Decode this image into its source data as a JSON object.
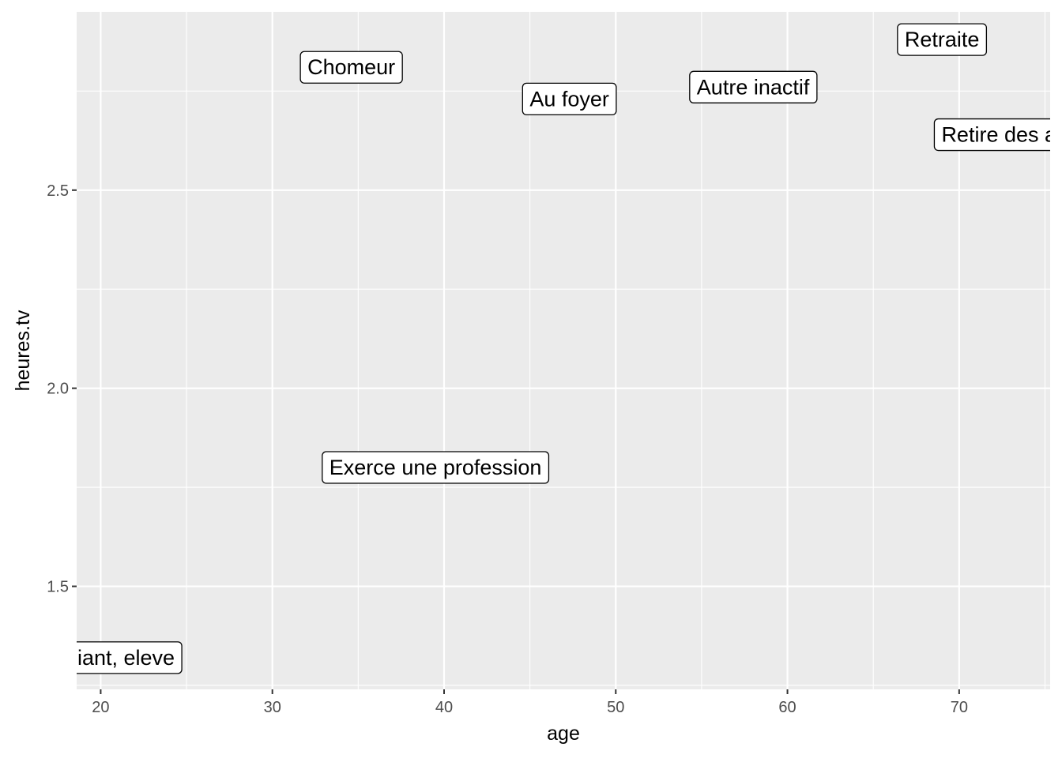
{
  "chart_data": {
    "type": "scatter",
    "geom": "label",
    "xlabel": "age",
    "ylabel": "heures.tv",
    "xlim": [
      18.6,
      75.3
    ],
    "ylim": [
      1.24,
      2.95
    ],
    "x_ticks": [
      20,
      30,
      40,
      50,
      60,
      70
    ],
    "x_tick_labels": [
      "20",
      "30",
      "40",
      "50",
      "60",
      "70"
    ],
    "y_ticks": [
      1.5,
      2.0,
      2.5
    ],
    "y_tick_labels": [
      "1.5",
      "2.0",
      "2.5"
    ],
    "points": [
      {
        "label": "Etudiant, eleve",
        "x": 20.2,
        "y": 1.32
      },
      {
        "label": "Chomeur",
        "x": 34.6,
        "y": 2.81
      },
      {
        "label": "Exerce une profession",
        "x": 39.5,
        "y": 1.8
      },
      {
        "label": "Au foyer",
        "x": 47.3,
        "y": 2.73
      },
      {
        "label": "Autre inactif",
        "x": 58.0,
        "y": 2.76
      },
      {
        "label": "Retraite",
        "x": 69.0,
        "y": 2.88
      },
      {
        "label": "Retire des affaires",
        "x": 74.0,
        "y": 2.64
      }
    ],
    "grid": true,
    "legend": "none",
    "colors": {
      "panel": "#ebebeb",
      "grid": "#ffffff",
      "label_fill": "#ffffff",
      "label_border": "#000000"
    }
  }
}
